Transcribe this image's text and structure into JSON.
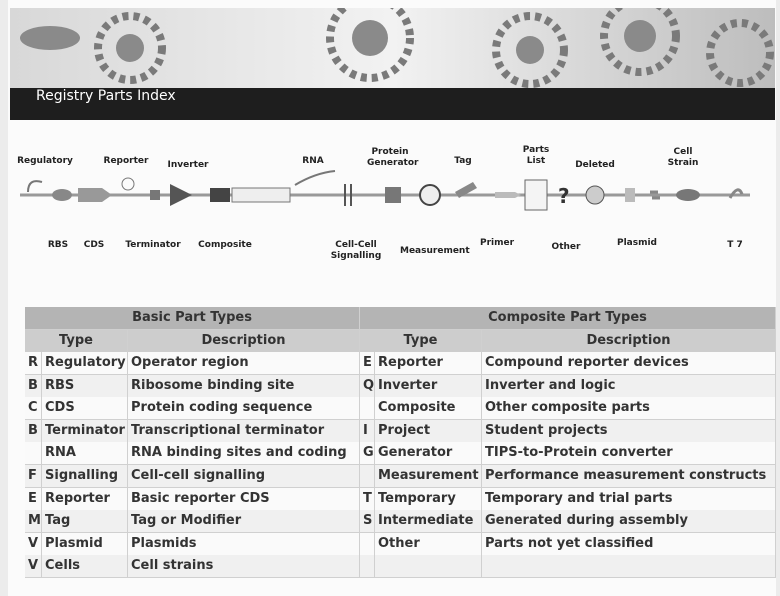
{
  "header": {
    "title": "Registry Parts Index"
  },
  "diagram": {
    "top_labels": [
      "Regulatory",
      "Reporter",
      "Inverter",
      "RNA",
      "Protein Generator",
      "Tag",
      "Parts List",
      "Deleted",
      "Cell Strain"
    ],
    "bottom_labels": [
      "RBS",
      "CDS",
      "Terminator",
      "Composite",
      "Cell-Cell Signalling",
      "Measurement",
      "Primer",
      "Other",
      "Plasmid",
      "T 7"
    ]
  },
  "table": {
    "groups": [
      "Basic Part Types",
      "Composite Part Types"
    ],
    "columns": [
      "Type",
      "Description",
      "Type",
      "Description"
    ],
    "basic": [
      {
        "code": "R",
        "type": "Regulatory",
        "description": "Operator region"
      },
      {
        "code": "B",
        "type": "RBS",
        "description": "Ribosome binding site"
      },
      {
        "code": "C",
        "type": "CDS",
        "description": "Protein coding sequence"
      },
      {
        "code": "B",
        "type": "Terminator",
        "description": "Transcriptional terminator"
      },
      {
        "type": "RNA",
        "description": "RNA binding sites and coding"
      },
      {
        "code": "F",
        "type": "Signalling",
        "description": "Cell-cell signalling"
      },
      {
        "code": "E",
        "type": "Reporter",
        "description": "Basic reporter CDS"
      },
      {
        "code": "M",
        "type": "Tag",
        "description": "Tag or Modifier"
      },
      {
        "code": "V",
        "type": "Plasmid",
        "description": "Plasmids"
      },
      {
        "code": "V",
        "type": "Cells",
        "description": "Cell strains"
      }
    ],
    "composite": [
      {
        "code": "E",
        "type": "Reporter",
        "description": "Compound reporter devices"
      },
      {
        "code": "Q",
        "type": "Inverter",
        "description": "Inverter and logic"
      },
      {
        "type": "Composite",
        "description": "Other composite parts"
      },
      {
        "code": "I",
        "type": "Project",
        "description": "Student projects"
      },
      {
        "code": "G",
        "type": "Generator",
        "description": "TIPS-to-Protein converter"
      },
      {
        "type": "Measurement",
        "description": "Performance measurement constructs"
      },
      {
        "code": "T",
        "type": "Temporary",
        "description": "Temporary and trial parts"
      },
      {
        "code": "S",
        "type": "Intermediate",
        "description": "Generated during assembly"
      },
      {
        "type": "Other",
        "description": "Parts not yet classified"
      }
    ]
  }
}
